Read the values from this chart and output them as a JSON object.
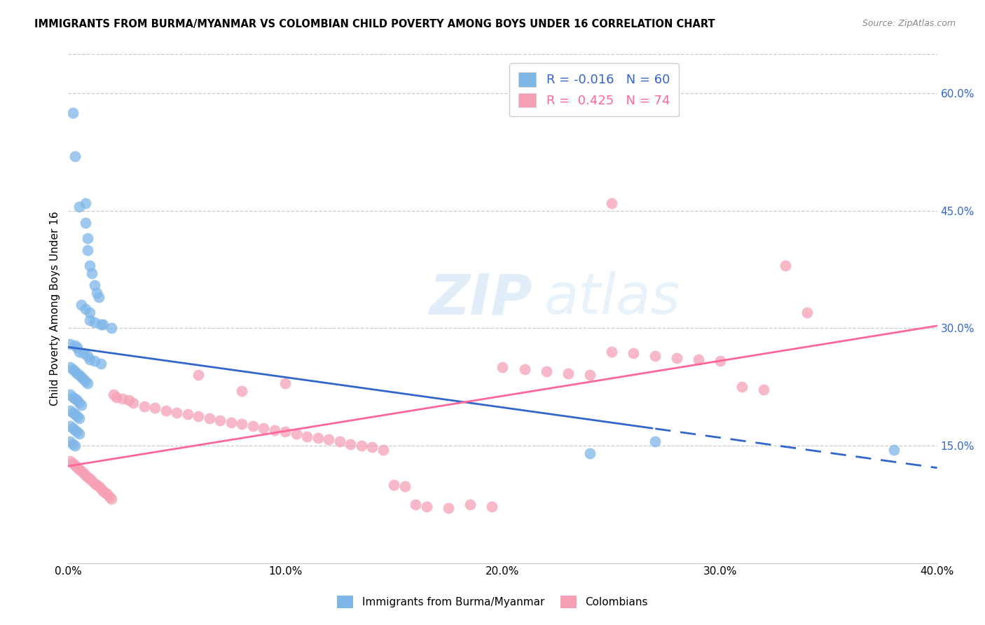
{
  "title": "IMMIGRANTS FROM BURMA/MYANMAR VS COLOMBIAN CHILD POVERTY AMONG BOYS UNDER 16 CORRELATION CHART",
  "source": "Source: ZipAtlas.com",
  "ylabel": "Child Poverty Among Boys Under 16",
  "xlim": [
    0.0,
    0.4
  ],
  "ylim": [
    0.0,
    0.65
  ],
  "xticks": [
    0.0,
    0.1,
    0.2,
    0.3,
    0.4
  ],
  "xtick_labels": [
    "0.0%",
    "10.0%",
    "20.0%",
    "30.0%",
    "40.0%"
  ],
  "yticks": [
    0.15,
    0.3,
    0.45,
    0.6
  ],
  "ytick_labels": [
    "15.0%",
    "30.0%",
    "45.0%",
    "60.0%"
  ],
  "grid_color": "#cccccc",
  "background_color": "#ffffff",
  "watermark_zip": "ZIP",
  "watermark_atlas": "atlas",
  "blue_color": "#7EB6E8",
  "pink_color": "#F5A0B5",
  "blue_line_color": "#3366CC",
  "pink_line_color": "#FF6699",
  "r_blue": -0.016,
  "n_blue": 60,
  "r_pink": 0.425,
  "n_pink": 74,
  "blue_scatter_x": [
    0.002,
    0.003,
    0.008,
    0.008,
    0.005,
    0.009,
    0.009,
    0.01,
    0.011,
    0.012,
    0.013,
    0.014,
    0.006,
    0.008,
    0.01,
    0.01,
    0.012,
    0.015,
    0.016,
    0.02,
    0.001,
    0.003,
    0.004,
    0.005,
    0.007,
    0.009,
    0.01,
    0.012,
    0.015,
    0.001,
    0.002,
    0.003,
    0.004,
    0.005,
    0.006,
    0.007,
    0.008,
    0.009,
    0.001,
    0.002,
    0.003,
    0.004,
    0.005,
    0.006,
    0.001,
    0.002,
    0.003,
    0.004,
    0.005,
    0.001,
    0.002,
    0.003,
    0.004,
    0.005,
    0.001,
    0.002,
    0.003,
    0.27,
    0.38,
    0.24
  ],
  "blue_scatter_y": [
    0.575,
    0.52,
    0.46,
    0.435,
    0.455,
    0.415,
    0.4,
    0.38,
    0.37,
    0.355,
    0.345,
    0.34,
    0.33,
    0.325,
    0.32,
    0.31,
    0.308,
    0.305,
    0.305,
    0.3,
    0.28,
    0.278,
    0.275,
    0.27,
    0.268,
    0.265,
    0.26,
    0.258,
    0.255,
    0.25,
    0.248,
    0.245,
    0.242,
    0.24,
    0.238,
    0.235,
    0.232,
    0.23,
    0.215,
    0.212,
    0.21,
    0.208,
    0.205,
    0.202,
    0.195,
    0.192,
    0.19,
    0.188,
    0.185,
    0.175,
    0.172,
    0.17,
    0.168,
    0.165,
    0.155,
    0.152,
    0.15,
    0.155,
    0.145,
    0.14
  ],
  "pink_scatter_x": [
    0.001,
    0.002,
    0.003,
    0.004,
    0.005,
    0.006,
    0.007,
    0.008,
    0.009,
    0.01,
    0.011,
    0.012,
    0.013,
    0.014,
    0.015,
    0.016,
    0.017,
    0.018,
    0.019,
    0.02,
    0.021,
    0.022,
    0.025,
    0.028,
    0.03,
    0.035,
    0.04,
    0.045,
    0.05,
    0.055,
    0.06,
    0.065,
    0.07,
    0.075,
    0.08,
    0.085,
    0.09,
    0.095,
    0.1,
    0.105,
    0.11,
    0.115,
    0.12,
    0.125,
    0.13,
    0.135,
    0.14,
    0.145,
    0.15,
    0.155,
    0.16,
    0.165,
    0.175,
    0.185,
    0.195,
    0.2,
    0.21,
    0.22,
    0.23,
    0.24,
    0.25,
    0.26,
    0.27,
    0.28,
    0.29,
    0.3,
    0.31,
    0.32,
    0.25,
    0.33,
    0.34,
    0.06,
    0.08,
    0.1
  ],
  "pink_scatter_y": [
    0.13,
    0.128,
    0.125,
    0.122,
    0.12,
    0.118,
    0.115,
    0.112,
    0.11,
    0.108,
    0.105,
    0.102,
    0.1,
    0.098,
    0.095,
    0.092,
    0.09,
    0.088,
    0.085,
    0.082,
    0.215,
    0.212,
    0.21,
    0.208,
    0.205,
    0.2,
    0.198,
    0.195,
    0.192,
    0.19,
    0.188,
    0.185,
    0.182,
    0.18,
    0.178,
    0.175,
    0.172,
    0.17,
    0.168,
    0.165,
    0.162,
    0.16,
    0.158,
    0.155,
    0.152,
    0.15,
    0.148,
    0.145,
    0.1,
    0.098,
    0.075,
    0.072,
    0.07,
    0.075,
    0.072,
    0.25,
    0.248,
    0.245,
    0.242,
    0.24,
    0.27,
    0.268,
    0.265,
    0.262,
    0.26,
    0.258,
    0.225,
    0.222,
    0.46,
    0.38,
    0.32,
    0.24,
    0.22,
    0.23
  ]
}
